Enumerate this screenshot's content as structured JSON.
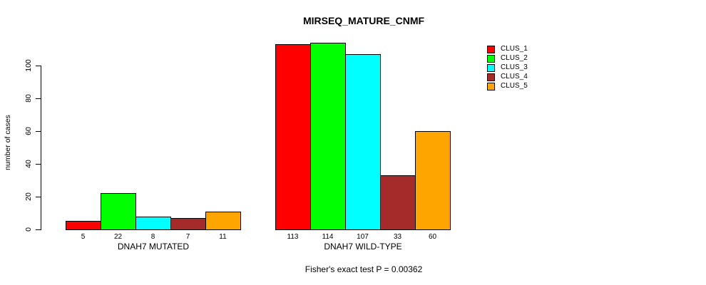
{
  "title": "MIRSEQ_MATURE_CNMF",
  "chart_data": {
    "type": "bar",
    "title": "MIRSEQ_MATURE_CNMF",
    "ylabel": "number of cases",
    "xlabel": "",
    "ylim": [
      0,
      120
    ],
    "yticks": [
      0,
      20,
      40,
      60,
      80,
      100
    ],
    "grid": false,
    "legend_position": "top-right",
    "categories": [
      "DNAH7 MUTATED",
      "DNAH7 WILD-TYPE"
    ],
    "series": [
      {
        "name": "CLUS_1",
        "color": "#ff0000",
        "values": [
          5,
          113
        ]
      },
      {
        "name": "CLUS_2",
        "color": "#00ff00",
        "values": [
          22,
          114
        ]
      },
      {
        "name": "CLUS_3",
        "color": "#00ffff",
        "values": [
          8,
          107
        ]
      },
      {
        "name": "CLUS_4",
        "color": "#a52a2a",
        "values": [
          7,
          33
        ]
      },
      {
        "name": "CLUS_5",
        "color": "#ffa500",
        "values": [
          11,
          60
        ]
      }
    ],
    "bar_value_labels": [
      [
        "5",
        "22",
        "8",
        "7",
        "11"
      ],
      [
        "113",
        "114",
        "107",
        "33",
        "60"
      ]
    ],
    "annotation": "Fisher's exact test P = 0.00362"
  },
  "legend": {
    "items": [
      {
        "label": "CLUS_1",
        "color": "#ff0000"
      },
      {
        "label": "CLUS_2",
        "color": "#00ff00"
      },
      {
        "label": "CLUS_3",
        "color": "#00ffff"
      },
      {
        "label": "CLUS_4",
        "color": "#a52a2a"
      },
      {
        "label": "CLUS_5",
        "color": "#ffa500"
      }
    ]
  }
}
